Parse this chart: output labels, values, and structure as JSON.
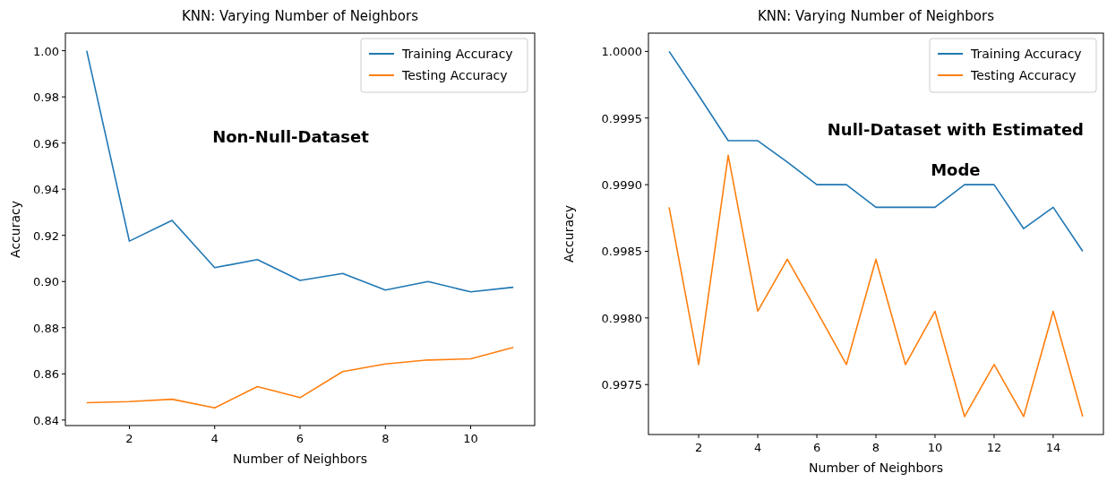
{
  "chart_data": [
    {
      "type": "line",
      "title": "KNN: Varying Number of Neighbors",
      "xlabel": "Number of Neighbors",
      "ylabel": "Accuracy",
      "x": [
        1,
        2,
        3,
        4,
        5,
        6,
        7,
        8,
        9,
        10,
        11
      ],
      "series": [
        {
          "name": "Training Accuracy",
          "color": "#1f77b4",
          "values": [
            1.0,
            0.9175,
            0.9265,
            0.906,
            0.9095,
            0.9005,
            0.9035,
            0.8963,
            0.9,
            0.8955,
            0.8975
          ]
        },
        {
          "name": "Testing Accuracy",
          "color": "#ff7f0e",
          "values": [
            0.8475,
            0.848,
            0.849,
            0.8453,
            0.8545,
            0.8497,
            0.861,
            0.8643,
            0.866,
            0.8665,
            0.8715
          ]
        }
      ],
      "xlim": [
        0.5,
        11.5
      ],
      "xticks": [
        2,
        4,
        6,
        8,
        10
      ],
      "ylim": [
        0.8376,
        1.0076
      ],
      "yticks": [
        {
          "value": 0.84,
          "label": "0.84"
        },
        {
          "value": 0.86,
          "label": "0.86"
        },
        {
          "value": 0.88,
          "label": "0.88"
        },
        {
          "value": 0.9,
          "label": "0.90"
        },
        {
          "value": 0.92,
          "label": "0.92"
        },
        {
          "value": 0.94,
          "label": "0.94"
        },
        {
          "value": 0.96,
          "label": "0.96"
        },
        {
          "value": 0.98,
          "label": "0.98"
        },
        {
          "value": 1.0,
          "label": "1.00"
        }
      ],
      "legend": "top right",
      "grid": false,
      "annotations": [
        "Non-Null-Dataset"
      ]
    },
    {
      "type": "line",
      "title": "KNN: Varying Number of Neighbors",
      "xlabel": "Number of Neighbors",
      "ylabel": "Accuracy",
      "x": [
        1,
        2,
        3,
        4,
        5,
        6,
        7,
        8,
        9,
        10,
        11,
        12,
        13,
        14,
        15
      ],
      "series": [
        {
          "name": "Training Accuracy",
          "color": "#1f77b4",
          "values": [
            1.0,
            0.99967,
            0.99933,
            0.99933,
            0.99917,
            0.999,
            0.999,
            0.99883,
            0.99883,
            0.99883,
            0.999,
            0.999,
            0.99867,
            0.99883,
            0.9985
          ]
        },
        {
          "name": "Testing Accuracy",
          "color": "#ff7f0e",
          "values": [
            0.99883,
            0.99765,
            0.99922,
            0.99805,
            0.99844,
            0.99805,
            0.99765,
            0.99844,
            0.99765,
            0.99805,
            0.99726,
            0.99765,
            0.99726,
            0.99805,
            0.99726
          ]
        }
      ],
      "xlim": [
        0.3,
        15.7
      ],
      "xticks": [
        2,
        4,
        6,
        8,
        10,
        12,
        14
      ],
      "ylim": [
        0.997125,
        1.000137
      ],
      "yticks": [
        {
          "value": 0.9975,
          "label": "0.9975"
        },
        {
          "value": 0.998,
          "label": "0.9980"
        },
        {
          "value": 0.9985,
          "label": "0.9985"
        },
        {
          "value": 0.999,
          "label": "0.9990"
        },
        {
          "value": 0.9995,
          "label": "0.9995"
        },
        {
          "value": 1.0,
          "label": "1.0000"
        }
      ],
      "legend": "top right",
      "grid": false,
      "annotations": [
        "Null-Dataset with Estimated\nMode"
      ]
    }
  ]
}
